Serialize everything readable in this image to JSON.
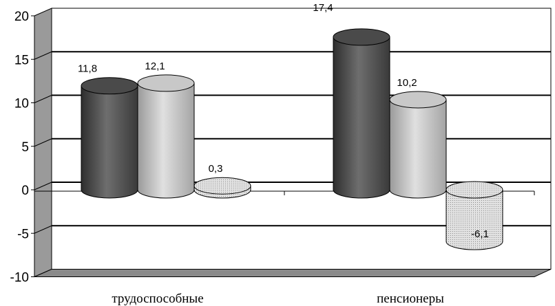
{
  "chart_data": {
    "type": "bar",
    "style": "3d-cylinder",
    "categories": [
      "трудоспособные",
      "пенсионеры"
    ],
    "series": [
      {
        "values": [
          11.8,
          17.4
        ],
        "color": "#5a5a5a",
        "pattern": "solid-dark"
      },
      {
        "values": [
          12.1,
          10.2
        ],
        "color": "#bdbdbd",
        "pattern": "solid-light"
      },
      {
        "values": [
          0.3,
          -6.1
        ],
        "color": "#d6d6d6",
        "pattern": "dotted"
      }
    ],
    "data_labels": [
      [
        "11,8",
        "17,4"
      ],
      [
        "12,1",
        "10,2"
      ],
      [
        "0,3",
        "-6,1"
      ]
    ],
    "y_ticks": [
      "20",
      "15",
      "10",
      "5",
      "0",
      "-5",
      "-10"
    ],
    "ylim": [
      -10,
      20
    ],
    "grid": true,
    "legend": "none",
    "title": "",
    "xlabel": "",
    "ylabel": ""
  }
}
